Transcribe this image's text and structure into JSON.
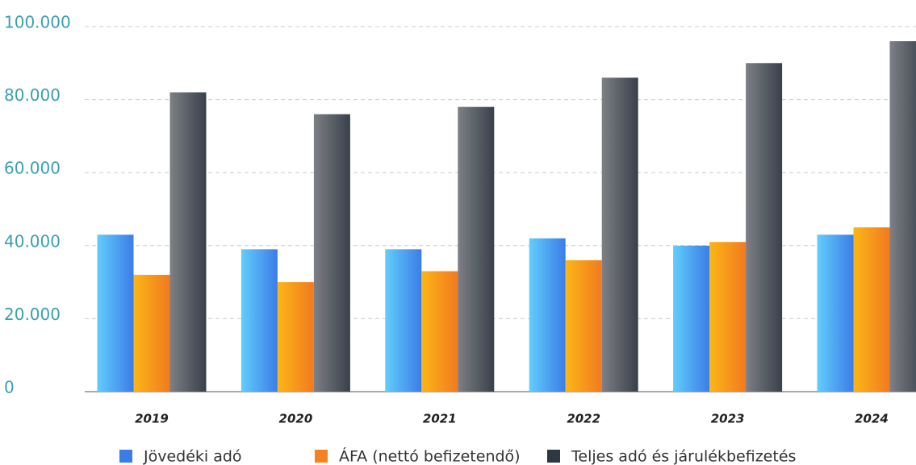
{
  "chart_data": {
    "type": "bar",
    "categories": [
      "2019",
      "2020",
      "2021",
      "2022",
      "2023",
      "2024"
    ],
    "series": [
      {
        "name": "Jövedéki adó",
        "color": "#3b7de8",
        "values": [
          43000,
          39000,
          39000,
          42000,
          40000,
          43000
        ]
      },
      {
        "name": "ÁFA (nettó befizetendő)",
        "color": "#f58220",
        "values": [
          32000,
          30000,
          33000,
          36000,
          41000,
          45000
        ]
      },
      {
        "name": "Teljes adó és járulékbefizetés",
        "color": "#2f3842",
        "values": [
          82000,
          76000,
          78000,
          86000,
          90000,
          96000
        ]
      }
    ],
    "ylim": [
      0,
      100000
    ],
    "yticks": [
      0,
      {
        "value": 20000,
        "label": "20.000"
      },
      {
        "value": 40000,
        "label": "40.000"
      },
      {
        "value": 60000,
        "label": "60.000"
      },
      {
        "value": 80000,
        "label": "80.000"
      },
      {
        "value": 100000,
        "label": "100.000"
      }
    ],
    "grid": true
  }
}
